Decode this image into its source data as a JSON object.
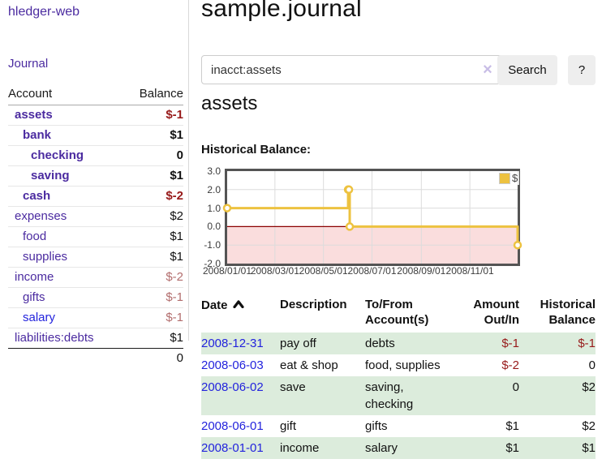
{
  "app": {
    "title": "hledger-web"
  },
  "sidebar": {
    "journal_link": "Journal",
    "accounts": {
      "headers": {
        "account": "Account",
        "balance": "Balance"
      },
      "rows": [
        {
          "name": "assets",
          "balance": "$-1",
          "level": 1,
          "bold": true,
          "link": "purple",
          "balance_style": "neg-bold"
        },
        {
          "name": "bank",
          "balance": "$1",
          "level": 2,
          "bold": true,
          "link": "purple",
          "balance_style": "pos-bold"
        },
        {
          "name": "checking",
          "balance": "0",
          "level": 3,
          "bold": true,
          "link": "purple",
          "balance_style": "pos-bold"
        },
        {
          "name": "saving",
          "balance": "$1",
          "level": 3,
          "bold": true,
          "link": "purple",
          "balance_style": "pos-bold"
        },
        {
          "name": "cash",
          "balance": "$-2",
          "level": 2,
          "bold": true,
          "link": "purple",
          "balance_style": "neg-bold"
        },
        {
          "name": "expenses",
          "balance": "$2",
          "level": 1,
          "bold": false,
          "link": "purple",
          "balance_style": ""
        },
        {
          "name": "food",
          "balance": "$1",
          "level": 2,
          "bold": false,
          "link": "purple",
          "balance_style": ""
        },
        {
          "name": "supplies",
          "balance": "$1",
          "level": 2,
          "bold": false,
          "link": "purple",
          "balance_style": ""
        },
        {
          "name": "income",
          "balance": "$-2",
          "level": 1,
          "bold": false,
          "link": "purple",
          "balance_style": "neg-light"
        },
        {
          "name": "gifts",
          "balance": "$-1",
          "level": 2,
          "bold": false,
          "link": "purple",
          "balance_style": "neg-light"
        },
        {
          "name": "salary",
          "balance": "$-1",
          "level": 2,
          "bold": false,
          "link": "blue",
          "balance_style": "neg-light"
        },
        {
          "name": "liabilities:debts",
          "balance": "$1",
          "level": 1,
          "bold": false,
          "link": "purple",
          "balance_style": ""
        }
      ],
      "total": "0"
    }
  },
  "main": {
    "title": "sample.journal",
    "search": {
      "value": "inacct:assets",
      "clear_icon": "×",
      "search_button": "Search",
      "help_button": "?"
    },
    "account_heading": "assets",
    "chart_label": "Historical Balance:",
    "register": {
      "headers": {
        "date": "Date",
        "description": "Description",
        "tofrom_line1": "To/From",
        "tofrom_line2": "Account(s)",
        "amount_line1": "Amount",
        "amount_line2": "Out/In",
        "balance_line1": "Historical",
        "balance_line2": "Balance"
      },
      "rows": [
        {
          "date": "2008-12-31",
          "description": "pay off",
          "accounts": "debts",
          "amount": "$-1",
          "amount_style": "neg",
          "balance": "$-1",
          "balance_style": "neg"
        },
        {
          "date": "2008-06-03",
          "description": "eat & shop",
          "accounts": "food, supplies",
          "amount": "$-2",
          "amount_style": "neg",
          "balance": "0",
          "balance_style": ""
        },
        {
          "date": "2008-06-02",
          "description": "save",
          "accounts": "saving, checking",
          "amount": "0",
          "amount_style": "",
          "balance": "$2",
          "balance_style": ""
        },
        {
          "date": "2008-06-01",
          "description": "gift",
          "accounts": "gifts",
          "amount": "$1",
          "amount_style": "",
          "balance": "$2",
          "balance_style": ""
        },
        {
          "date": "2008-01-01",
          "description": "income",
          "accounts": "salary",
          "amount": "$1",
          "amount_style": "",
          "balance": "$1",
          "balance_style": ""
        }
      ]
    }
  },
  "colors": {
    "link_purple": "#4b2ba0",
    "link_blue": "#2323dd",
    "negative_red": "#971a1a",
    "negative_light_red": "#b26d6d",
    "row_green": "#dcecdc",
    "chart_series_yellow": "#edc240",
    "chart_border_gray": "#545454",
    "zero_line_dark_red": "#8b0000",
    "negative_region_pink": "#fadddd",
    "button_gray": "#eeeeee"
  },
  "chart_data": {
    "type": "line",
    "title": "Historical Balance",
    "steps": true,
    "legend": "$",
    "legend_position": "top-right",
    "grid": true,
    "ylim": [
      -2,
      3
    ],
    "y_ticks": [
      "3.0",
      "2.0",
      "1.0",
      "0.0",
      "-1.0",
      "-2.0"
    ],
    "y_grid_values": [
      2,
      1,
      -1
    ],
    "x_ticks": [
      "2008/01/01",
      "2008/03/01",
      "2008/05/01",
      "2008/07/01",
      "2008/09/01",
      "2008/11/01"
    ],
    "x_range_days": [
      0,
      365
    ],
    "tick_days": [
      0,
      60,
      121,
      182,
      244,
      305
    ],
    "series": [
      {
        "name": "$",
        "color": "#edc240",
        "points": [
          {
            "date": "2008-01-01",
            "day": 0,
            "value": 1
          },
          {
            "date": "2008-06-01",
            "day": 152,
            "value": 2
          },
          {
            "date": "2008-06-02",
            "day": 153,
            "value": 2
          },
          {
            "date": "2008-06-03",
            "day": 154,
            "value": 0
          },
          {
            "date": "2008-12-31",
            "day": 365,
            "value": -1
          }
        ]
      }
    ]
  }
}
